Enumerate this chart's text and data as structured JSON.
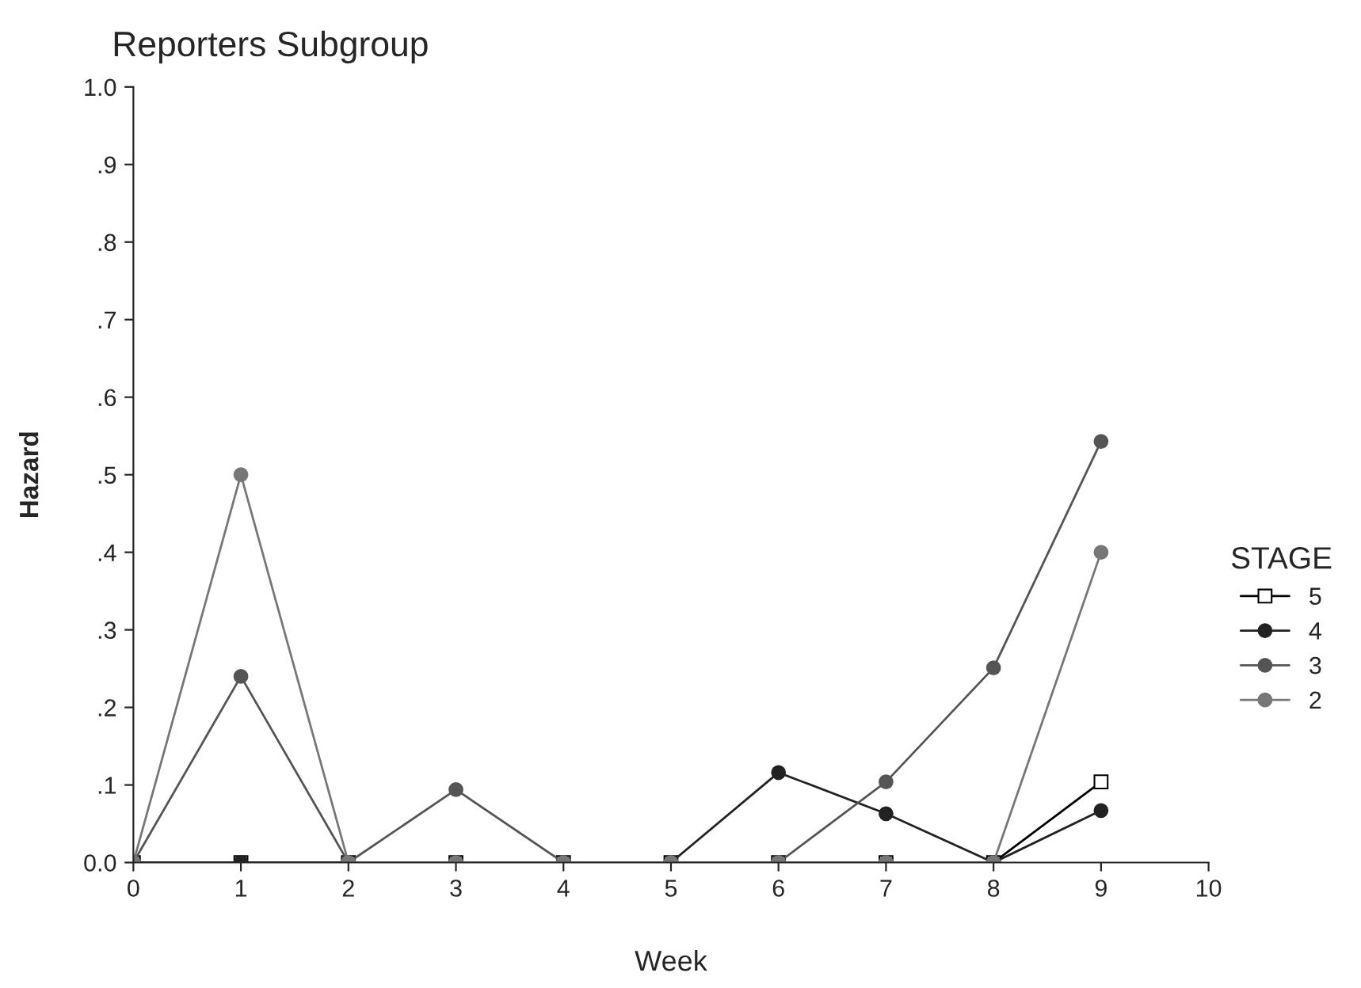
{
  "chart_data": {
    "type": "line",
    "title": "Reporters Subgroup",
    "xlabel": "Week",
    "ylabel": "Hazard",
    "legend_title": "STAGE",
    "x": [
      0,
      1,
      2,
      3,
      4,
      5,
      6,
      7,
      8,
      9
    ],
    "series": [
      {
        "name": "5",
        "color": "#000000",
        "marker": "square",
        "values": [
          0,
          0,
          0,
          0,
          0,
          0,
          0,
          0,
          0,
          0.104
        ]
      },
      {
        "name": "4",
        "color": "#222222",
        "marker": "circle",
        "values": [
          0,
          0,
          0,
          0,
          0,
          0,
          0.116,
          0.063,
          0,
          0.067
        ]
      },
      {
        "name": "3",
        "color": "#555555",
        "marker": "circle",
        "values": [
          0,
          0.24,
          0,
          0.094,
          0,
          0,
          0,
          0.104,
          0.251,
          0.543
        ]
      },
      {
        "name": "2",
        "color": "#777777",
        "marker": "circle",
        "values": [
          0,
          0.5,
          0,
          0,
          0,
          0,
          0,
          0,
          0,
          0.4
        ]
      }
    ],
    "xlim": [
      0,
      10
    ],
    "xticks": [
      0,
      1,
      2,
      3,
      4,
      5,
      6,
      7,
      8,
      9,
      10
    ],
    "ylim": [
      0,
      1
    ],
    "yticks": [
      {
        "value": 0,
        "label": "0.0"
      },
      {
        "value": 0.1,
        "label": ".1"
      },
      {
        "value": 0.2,
        "label": ".2"
      },
      {
        "value": 0.3,
        "label": ".3"
      },
      {
        "value": 0.4,
        "label": ".4"
      },
      {
        "value": 0.5,
        "label": ".5"
      },
      {
        "value": 0.6,
        "label": ".6"
      },
      {
        "value": 0.7,
        "label": ".7"
      },
      {
        "value": 0.8,
        "label": ".8"
      },
      {
        "value": 0.9,
        "label": ".9"
      },
      {
        "value": 1,
        "label": "1.0"
      }
    ],
    "grid": false,
    "legend": "right",
    "line_style": "solid"
  }
}
